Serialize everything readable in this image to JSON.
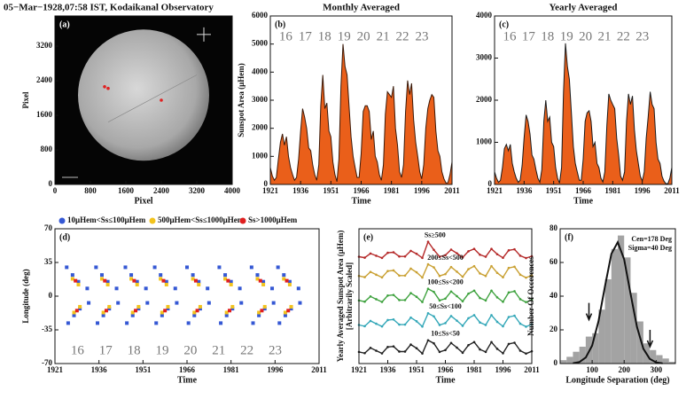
{
  "chart_data": [
    {
      "type": "image",
      "panel_label": "(a)",
      "title": "05−Mar−1928,07:58 IST, Kodaikanal Observatory",
      "xlabel": "Pixel",
      "ylabel": "Pixel",
      "xlim": [
        0,
        4000
      ],
      "ylim": [
        0,
        3900
      ],
      "xticks": [
        0,
        800,
        1600,
        2400,
        3200,
        4000
      ],
      "yticks": [
        0,
        800,
        1600,
        2400,
        3200
      ]
    },
    {
      "type": "area",
      "panel_label": "(b)",
      "title": "Monthly Averaged",
      "xlabel": "Time",
      "ylabel": "Sunspot Area (μHem)",
      "xlim": [
        1921,
        2011
      ],
      "ylim": [
        0,
        6000
      ],
      "xticks": [
        1921,
        1936,
        1951,
        1966,
        1981,
        1996,
        2011
      ],
      "yticks": [
        0,
        1000,
        2000,
        3000,
        4000,
        5000,
        6000
      ],
      "color": "#ea5f1a",
      "line_color": "#3a1a0a",
      "cycles": [
        "16",
        "17",
        "18",
        "19",
        "20",
        "21",
        "22",
        "23"
      ],
      "x": [
        1921,
        1922,
        1923,
        1924,
        1925,
        1926,
        1927,
        1928,
        1929,
        1930,
        1931,
        1932,
        1933,
        1934,
        1935,
        1936,
        1937,
        1938,
        1939,
        1940,
        1941,
        1942,
        1943,
        1944,
        1945,
        1946,
        1947,
        1948,
        1949,
        1950,
        1951,
        1952,
        1953,
        1954,
        1955,
        1956,
        1957,
        1958,
        1959,
        1960,
        1961,
        1962,
        1963,
        1964,
        1965,
        1966,
        1967,
        1968,
        1969,
        1970,
        1971,
        1972,
        1973,
        1974,
        1975,
        1976,
        1977,
        1978,
        1979,
        1980,
        1981,
        1982,
        1983,
        1984,
        1985,
        1986,
        1987,
        1988,
        1989,
        1990,
        1991,
        1992,
        1993,
        1994,
        1995,
        1996,
        1997,
        1998,
        1999,
        2000,
        2001,
        2002,
        2003,
        2004,
        2005,
        2006,
        2007,
        2008,
        2009,
        2010,
        2011
      ],
      "values": [
        600,
        300,
        150,
        250,
        900,
        1500,
        1800,
        1400,
        1700,
        1000,
        600,
        350,
        150,
        250,
        900,
        1900,
        2700,
        2400,
        2000,
        1300,
        1200,
        700,
        350,
        150,
        700,
        2800,
        3900,
        2700,
        2900,
        1900,
        1700,
        800,
        350,
        100,
        900,
        3500,
        5000,
        4200,
        3900,
        2800,
        1700,
        1000,
        600,
        250,
        250,
        1100,
        2600,
        2800,
        2800,
        2600,
        1600,
        1900,
        1000,
        800,
        350,
        150,
        700,
        2500,
        3300,
        3200,
        3100,
        3500,
        2000,
        1400,
        450,
        250,
        700,
        2600,
        3700,
        3200,
        3600,
        2300,
        1500,
        1000,
        450,
        200,
        700,
        2000,
        2700,
        3000,
        3200,
        3100,
        1900,
        1200,
        1000,
        450,
        200,
        50,
        60,
        350,
        800
      ]
    },
    {
      "type": "area",
      "panel_label": "(c)",
      "title": "Yearly Averaged",
      "xlabel": "Time",
      "xlim": [
        1921,
        2011
      ],
      "ylim": [
        0,
        4000
      ],
      "xticks": [
        1921,
        1936,
        1951,
        1966,
        1981,
        1996,
        2011
      ],
      "yticks": [
        0,
        1000,
        2000,
        3000,
        4000
      ],
      "color": "#ea5f1a",
      "line_color": "#1a1a1a",
      "cycles": [
        "16",
        "17",
        "18",
        "19",
        "20",
        "21",
        "22",
        "23"
      ],
      "x": [
        1921,
        1922,
        1923,
        1924,
        1925,
        1926,
        1927,
        1928,
        1929,
        1930,
        1931,
        1932,
        1933,
        1934,
        1935,
        1936,
        1937,
        1938,
        1939,
        1940,
        1941,
        1942,
        1943,
        1944,
        1945,
        1946,
        1947,
        1948,
        1949,
        1950,
        1951,
        1952,
        1953,
        1954,
        1955,
        1956,
        1957,
        1958,
        1959,
        1960,
        1961,
        1962,
        1963,
        1964,
        1965,
        1966,
        1967,
        1968,
        1969,
        1970,
        1971,
        1972,
        1973,
        1974,
        1975,
        1976,
        1977,
        1978,
        1979,
        1980,
        1981,
        1982,
        1983,
        1984,
        1985,
        1986,
        1987,
        1988,
        1989,
        1990,
        1991,
        1992,
        1993,
        1994,
        1995,
        1996,
        1997,
        1998,
        1999,
        2000,
        2001,
        2002,
        2003,
        2004,
        2005,
        2006,
        2007,
        2008,
        2009,
        2010,
        2011
      ],
      "values": [
        300,
        150,
        50,
        100,
        400,
        850,
        950,
        800,
        950,
        500,
        300,
        150,
        50,
        100,
        450,
        1100,
        1650,
        1500,
        1200,
        700,
        600,
        350,
        150,
        50,
        350,
        1500,
        2000,
        1500,
        1600,
        1000,
        900,
        400,
        150,
        30,
        400,
        2200,
        3350,
        2800,
        2500,
        1700,
        900,
        500,
        300,
        100,
        100,
        600,
        1500,
        1700,
        1750,
        1500,
        900,
        1000,
        500,
        400,
        150,
        60,
        300,
        1400,
        2150,
        2000,
        1900,
        1800,
        1100,
        700,
        200,
        100,
        300,
        1500,
        2150,
        1900,
        2100,
        1300,
        800,
        500,
        200,
        80,
        300,
        1100,
        1600,
        2200,
        1900,
        1800,
        1000,
        600,
        500,
        200,
        80,
        20,
        20,
        150,
        400
      ]
    },
    {
      "type": "scatter",
      "panel_label": "(d)",
      "xlabel": "Time",
      "ylabel": "Longitude (deg)",
      "xlim": [
        1921,
        2011
      ],
      "ylim": [
        -70,
        70
      ],
      "xticks": [
        1921,
        1936,
        1951,
        1966,
        1981,
        1996,
        2011
      ],
      "yticks": [
        -70,
        -35,
        0,
        35,
        70
      ],
      "cycles": [
        "16",
        "17",
        "18",
        "19",
        "20",
        "21",
        "22",
        "23"
      ],
      "series": [
        {
          "name": "10μHem<Ss≤100μHem",
          "color": "#3558d4",
          "x": [
            1925,
            1927,
            1929,
            1932,
            1925.5,
            1927.5,
            1929.5,
            1932.5,
            1935,
            1937,
            1939,
            1942,
            1935.5,
            1937.5,
            1939.5,
            1942.5,
            1945,
            1947,
            1949,
            1952,
            1945.5,
            1947.5,
            1949.5,
            1952.5,
            1955,
            1957,
            1959,
            1962,
            1955.5,
            1957.5,
            1959.5,
            1962.5,
            1966,
            1968,
            1970,
            1973,
            1966.5,
            1968.5,
            1970.5,
            1973.5,
            1977,
            1979,
            1981,
            1984,
            1977.5,
            1979.5,
            1981.5,
            1984.5,
            1988,
            1990,
            1992,
            1995,
            1988.5,
            1990.5,
            1992.5,
            1995.5,
            1997,
            1999,
            2001,
            2004,
            1997.5,
            1999.5,
            2001.5,
            2004.5
          ],
          "y": [
            30,
            22,
            15,
            8,
            -28,
            -20,
            -13,
            -7,
            30,
            22,
            15,
            8,
            -28,
            -20,
            -13,
            -7,
            30,
            22,
            15,
            8,
            -28,
            -20,
            -13,
            -7,
            30,
            22,
            15,
            8,
            -28,
            -20,
            -13,
            -7,
            30,
            22,
            15,
            8,
            -28,
            -20,
            -13,
            -7,
            30,
            22,
            15,
            8,
            -28,
            -20,
            -13,
            -7,
            30,
            22,
            15,
            8,
            -28,
            -20,
            -13,
            -7,
            30,
            22,
            15,
            8,
            -28,
            -20,
            -13,
            -7
          ]
        },
        {
          "name": "500μHem<Ss≤1000μHem",
          "color": "#f2c31c",
          "x": [
            1927,
            1929,
            1927.5,
            1929.5,
            1937,
            1939,
            1937.5,
            1939.5,
            1947,
            1949,
            1947.5,
            1949.5,
            1957,
            1959,
            1957.5,
            1959.5,
            1968,
            1970,
            1968.5,
            1970.5,
            1979,
            1981,
            1979.5,
            1981.5,
            1990,
            1992,
            1990.5,
            1992.5,
            1999,
            2001,
            1999.5,
            2001.5
          ],
          "y": [
            18,
            12,
            -17,
            -11,
            18,
            12,
            -17,
            -11,
            18,
            12,
            -17,
            -11,
            18,
            12,
            -17,
            -11,
            18,
            12,
            -17,
            -11,
            18,
            12,
            -17,
            -11,
            18,
            12,
            -17,
            -11,
            18,
            12,
            -17,
            -11
          ]
        },
        {
          "name": "Ss>1000μHem",
          "color": "#e02020",
          "x": [
            1928,
            1928.5,
            1938,
            1938.5,
            1948,
            1948.5,
            1958,
            1958.5,
            1969,
            1969.5,
            1980,
            1980.5,
            1991,
            1991.5,
            2000,
            2000.5
          ],
          "y": [
            16,
            -15,
            16,
            -15,
            16,
            -15,
            16,
            -15,
            16,
            -15,
            16,
            -15,
            16,
            -15,
            16,
            -15
          ]
        }
      ]
    },
    {
      "type": "line",
      "panel_label": "(e)",
      "xlabel": "Time",
      "ylabel": "Yearly Averaged Sunspot Area (μHem)",
      "ylabel2": "[Arbitrarily Scaled]",
      "xlim": [
        1921,
        2011
      ],
      "ylim": [
        0,
        11
      ],
      "xticks": [
        1921,
        1936,
        1951,
        1966,
        1981,
        1996,
        2011
      ],
      "x": [
        1921,
        1924,
        1927,
        1930,
        1933,
        1936,
        1939,
        1942,
        1945,
        1948,
        1951,
        1954,
        1957,
        1960,
        1963,
        1966,
        1969,
        1972,
        1975,
        1978,
        1981,
        1984,
        1987,
        1990,
        1993,
        1996,
        1999,
        2002,
        2005,
        2008,
        2011
      ],
      "series": [
        {
          "name": "Ss≥500",
          "color": "#b52a2a",
          "values": [
            8.72,
            8.64,
            8.98,
            8.8,
            8.62,
            9.04,
            9.08,
            8.74,
            8.74,
            9.2,
            8.96,
            8.62,
            9.94,
            9.28,
            8.72,
            8.84,
            9.3,
            9.0,
            8.66,
            9.16,
            9.36,
            8.88,
            8.72,
            9.36,
            8.92,
            8.63,
            9.24,
            9.32,
            8.8,
            8.61,
            8.76
          ]
        },
        {
          "name": "200≤Ss<500",
          "color": "#c9a032",
          "values": [
            7.15,
            7.05,
            7.48,
            7.25,
            7.03,
            7.55,
            7.6,
            7.18,
            7.18,
            7.75,
            7.45,
            7.02,
            8.1,
            7.85,
            7.15,
            7.3,
            7.88,
            7.5,
            7.08,
            7.7,
            7.95,
            7.35,
            7.15,
            7.95,
            7.4,
            7.04,
            7.8,
            7.9,
            7.25,
            7.01,
            7.2
          ]
        },
        {
          "name": "100≤Ss<200",
          "color": "#3ea23e",
          "values": [
            5.15,
            5.05,
            5.48,
            5.25,
            5.03,
            5.55,
            5.6,
            5.18,
            5.18,
            5.75,
            5.45,
            5.02,
            6.1,
            5.85,
            5.15,
            5.3,
            5.88,
            5.5,
            5.08,
            5.7,
            5.95,
            5.35,
            5.15,
            5.95,
            5.4,
            5.04,
            5.8,
            5.9,
            5.25,
            5.01,
            5.2
          ]
        },
        {
          "name": "50≤Ss<100",
          "color": "#33a7b8",
          "values": [
            3.15,
            3.05,
            3.48,
            3.25,
            3.03,
            3.55,
            3.6,
            3.18,
            3.18,
            3.75,
            3.45,
            3.02,
            4.1,
            3.85,
            3.15,
            3.3,
            3.88,
            3.5,
            3.08,
            3.7,
            3.95,
            3.35,
            3.15,
            3.95,
            3.4,
            3.04,
            3.8,
            3.9,
            3.25,
            3.01,
            3.2
          ]
        },
        {
          "name": "10≤Ss<50",
          "color": "#222222",
          "values": [
            0.95,
            0.85,
            1.28,
            1.05,
            0.83,
            1.35,
            1.4,
            0.98,
            0.98,
            1.55,
            1.25,
            0.82,
            1.9,
            1.65,
            0.95,
            1.1,
            1.68,
            1.3,
            0.88,
            1.5,
            1.75,
            1.15,
            0.95,
            1.75,
            1.2,
            0.84,
            1.6,
            1.7,
            1.05,
            0.81,
            1.0
          ]
        }
      ]
    },
    {
      "type": "histogram",
      "panel_label": "(f)",
      "xlabel": "Longitude Separation (deg)",
      "ylabel": "Number Of Occerences",
      "xlim": [
        0,
        360
      ],
      "ylim": [
        0,
        80
      ],
      "xticks": [
        100,
        200,
        300
      ],
      "yticks": [
        0,
        20,
        40,
        60,
        80
      ],
      "color": "#a3a3a3",
      "annotations": [
        "Cen=178 Deg",
        "Sigma=40 Deg"
      ],
      "bins": [
        0,
        20,
        40,
        60,
        80,
        100,
        120,
        140,
        160,
        180,
        200,
        220,
        240,
        260,
        280,
        300,
        320,
        340,
        360
      ],
      "counts": [
        2,
        4,
        7,
        10,
        16,
        18,
        32,
        50,
        68,
        76,
        63,
        42,
        25,
        12,
        8,
        5,
        3,
        1
      ],
      "fit_x": [
        40,
        60,
        80,
        100,
        120,
        140,
        160,
        180,
        200,
        220,
        240,
        260,
        280,
        300,
        320
      ],
      "fit_y": [
        0.2,
        0.9,
        3.6,
        10.7,
        25.2,
        45.9,
        65.1,
        72.0,
        61.9,
        41.5,
        21.7,
        8.8,
        2.8,
        0.7,
        0.1
      ]
    }
  ]
}
